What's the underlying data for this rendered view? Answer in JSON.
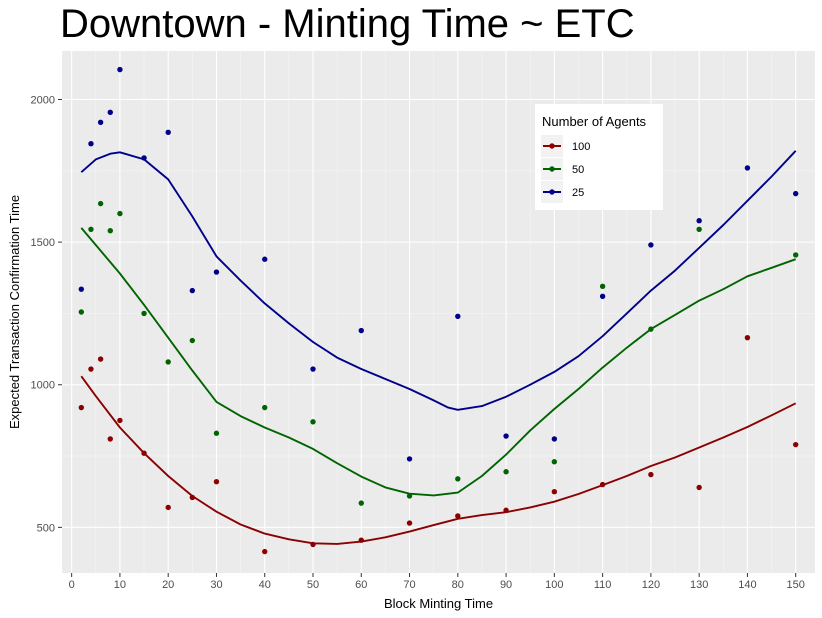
{
  "chart_data": {
    "type": "scatter",
    "title": "Downtown - Minting Time ~ ETC",
    "xlabel": "Block Minting Time",
    "ylabel": "Expected Transaction Confirmation Time",
    "xlim": [
      -2,
      154
    ],
    "ylim": [
      340,
      2170
    ],
    "x_ticks": [
      0,
      10,
      20,
      30,
      40,
      50,
      60,
      70,
      80,
      90,
      100,
      110,
      120,
      130,
      140,
      150
    ],
    "x_minor_ticks": [
      5,
      15,
      25,
      35,
      45,
      55,
      65,
      75,
      85,
      95,
      105,
      115,
      125,
      135,
      145
    ],
    "y_ticks": [
      500,
      1000,
      1500,
      2000
    ],
    "y_minor_ticks": [
      750,
      1250,
      1750
    ],
    "grid": true,
    "legend": {
      "title": "Number of Agents",
      "placement": "top-right",
      "entries": [
        "100",
        "50",
        "25"
      ]
    },
    "series": [
      {
        "name": "100",
        "color": "#8b0000",
        "x": [
          2,
          4,
          6,
          8,
          10,
          15,
          20,
          25,
          30,
          40,
          50,
          60,
          70,
          80,
          90,
          100,
          110,
          120,
          130,
          140,
          150
        ],
        "y": [
          920,
          1055,
          1090,
          810,
          875,
          760,
          570,
          605,
          660,
          415,
          440,
          455,
          515,
          540,
          560,
          625,
          650,
          685,
          640,
          1165,
          790
        ],
        "smooth_x": [
          2,
          5,
          10,
          15,
          20,
          25,
          30,
          35,
          40,
          45,
          50,
          55,
          60,
          65,
          70,
          75,
          80,
          85,
          90,
          95,
          100,
          105,
          110,
          115,
          120,
          125,
          130,
          135,
          140,
          145,
          150
        ],
        "smooth_y": [
          1030,
          960,
          850,
          760,
          680,
          610,
          555,
          510,
          478,
          458,
          444,
          442,
          450,
          465,
          485,
          508,
          530,
          543,
          553,
          570,
          590,
          617,
          648,
          680,
          715,
          745,
          780,
          815,
          852,
          893,
          935
        ]
      },
      {
        "name": "50",
        "color": "#006400",
        "x": [
          2,
          4,
          6,
          8,
          10,
          15,
          20,
          25,
          30,
          40,
          50,
          60,
          70,
          80,
          90,
          100,
          110,
          120,
          130,
          150
        ],
        "y": [
          1255,
          1545,
          1635,
          1540,
          1600,
          1250,
          1080,
          1155,
          830,
          920,
          870,
          585,
          610,
          670,
          695,
          730,
          1345,
          1195,
          1545,
          1455
        ],
        "smooth_x": [
          2,
          5,
          10,
          15,
          20,
          25,
          30,
          35,
          40,
          45,
          50,
          55,
          60,
          65,
          70,
          75,
          80,
          85,
          90,
          95,
          100,
          105,
          110,
          115,
          120,
          125,
          130,
          135,
          140,
          145,
          150
        ],
        "smooth_y": [
          1550,
          1490,
          1390,
          1280,
          1165,
          1050,
          940,
          890,
          850,
          815,
          775,
          725,
          678,
          640,
          618,
          612,
          622,
          680,
          755,
          840,
          915,
          985,
          1060,
          1130,
          1195,
          1245,
          1295,
          1335,
          1380,
          1410,
          1440
        ]
      },
      {
        "name": "25",
        "color": "#00008b",
        "x": [
          2,
          4,
          6,
          8,
          10,
          15,
          20,
          25,
          30,
          40,
          50,
          60,
          70,
          80,
          90,
          100,
          110,
          120,
          130,
          140,
          150
        ],
        "y": [
          1335,
          1845,
          1920,
          1955,
          2105,
          1795,
          1885,
          1330,
          1395,
          1440,
          1055,
          1190,
          740,
          1240,
          820,
          810,
          1310,
          1490,
          1575,
          1760,
          1670
        ],
        "smooth_x": [
          2,
          5,
          8,
          10,
          15,
          20,
          25,
          30,
          35,
          40,
          45,
          50,
          55,
          60,
          65,
          70,
          75,
          78,
          80,
          85,
          90,
          95,
          100,
          105,
          110,
          115,
          120,
          125,
          130,
          135,
          140,
          145,
          150
        ],
        "smooth_y": [
          1745,
          1790,
          1810,
          1815,
          1790,
          1720,
          1590,
          1450,
          1365,
          1285,
          1215,
          1150,
          1095,
          1055,
          1020,
          985,
          945,
          920,
          912,
          925,
          958,
          1000,
          1045,
          1100,
          1170,
          1250,
          1330,
          1400,
          1480,
          1560,
          1645,
          1730,
          1820
        ]
      }
    ]
  }
}
